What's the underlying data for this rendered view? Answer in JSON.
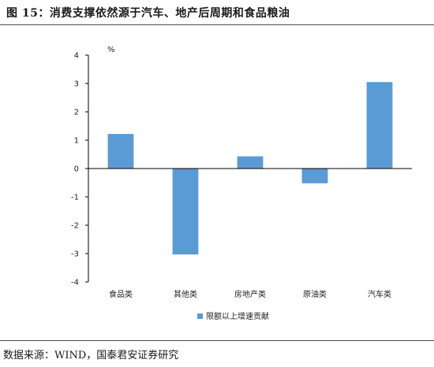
{
  "figure": {
    "title": "图 15：消费支撑依然源于汽车、地产后周期和食品粮油",
    "source": "数据来源：WIND，国泰君安证券研究"
  },
  "colors": {
    "bar": "#5B9BD5",
    "axis": "#000000"
  },
  "chart_data": {
    "type": "bar",
    "unit_label": "%",
    "categories": [
      "食品类",
      "其他类",
      "房地产类",
      "原油类",
      "汽车类"
    ],
    "series": [
      {
        "name": "限额以上增速贡献",
        "values": [
          1.22,
          -3.03,
          0.43,
          -0.52,
          3.05
        ]
      }
    ],
    "ylim": [
      -4,
      4
    ],
    "yticks": [
      -4,
      -3,
      -2,
      -1,
      0,
      1,
      2,
      3,
      4
    ],
    "grid": false,
    "legend": "bottom"
  }
}
